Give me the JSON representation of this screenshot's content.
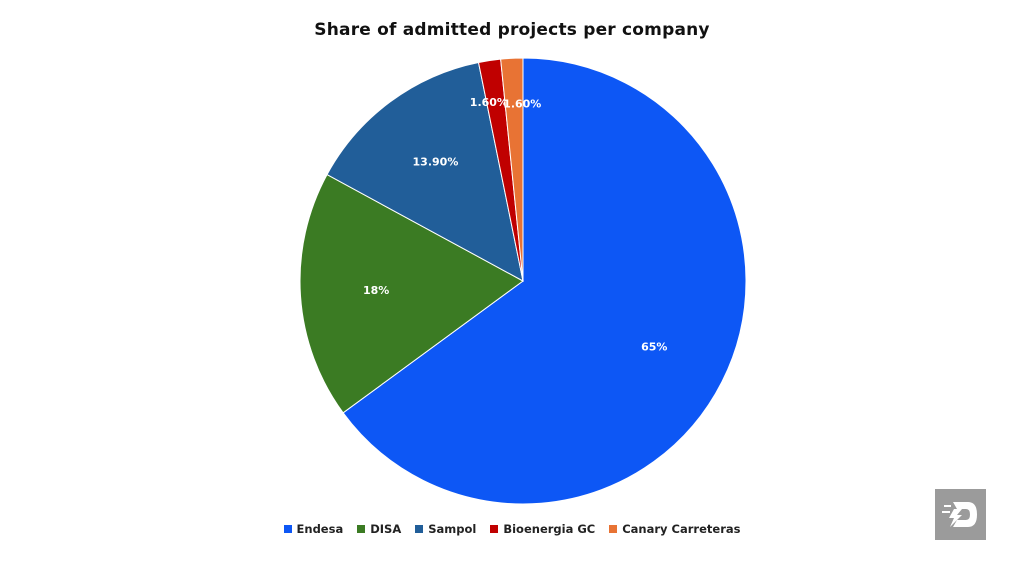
{
  "chart_data": {
    "type": "pie",
    "title": "Share of admitted projects per company",
    "slices": [
      {
        "label": "Endesa",
        "value": 65,
        "display": "65%",
        "color": "#0d57f5"
      },
      {
        "label": "DISA",
        "value": 18,
        "display": "18%",
        "color": "#3b7b23"
      },
      {
        "label": "Sampol",
        "value": 13.9,
        "display": "13.90%",
        "color": "#215e99"
      },
      {
        "label": "Bioenergia GC",
        "value": 1.6,
        "display": "1.60%",
        "color": "#c00000"
      },
      {
        "label": "Canary Carreteras",
        "value": 1.6,
        "display": "1.60%",
        "color": "#e87334"
      }
    ],
    "start_angle_deg": 0,
    "direction": "clockwise",
    "legend_placement": "bottom"
  },
  "logo": {
    "icon": "lightning-d-logo-icon",
    "color": "#9b9b9b"
  }
}
